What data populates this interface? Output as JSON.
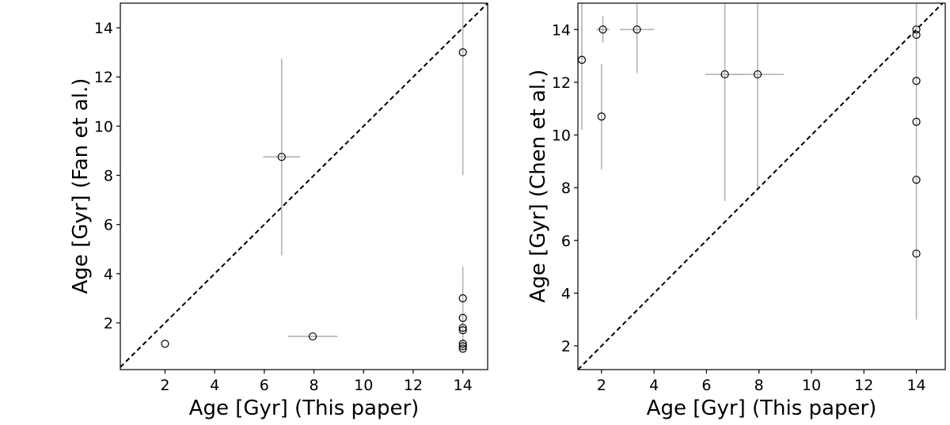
{
  "chart_data": [
    {
      "type": "scatter",
      "xlabel": "Age [Gyr] (This paper)",
      "ylabel": "Age [Gyr] (Fan et al.)",
      "xlim": [
        0.2,
        15
      ],
      "ylim": [
        0.1,
        15
      ],
      "xticks": [
        2,
        4,
        6,
        8,
        10,
        12,
        14
      ],
      "yticks": [
        2,
        4,
        6,
        8,
        10,
        12,
        14
      ],
      "reference_line": "y = x, dashed",
      "grid": false,
      "points": [
        {
          "x": 2.0,
          "y": 1.15
        },
        {
          "x": 6.7,
          "y": 8.75,
          "xerr": [
            0.75,
            0.75
          ],
          "yerr": [
            4.0,
            4.0
          ]
        },
        {
          "x": 7.95,
          "y": 1.45,
          "xerr": [
            1.0,
            1.0
          ]
        },
        {
          "x": 14.0,
          "y": 13.0,
          "yerr": [
            5.0,
            2.2
          ]
        },
        {
          "x": 14.0,
          "y": 3.0,
          "yerr": [
            2.1,
            1.3
          ]
        },
        {
          "x": 14.0,
          "y": 2.2
        },
        {
          "x": 14.0,
          "y": 1.8
        },
        {
          "x": 14.0,
          "y": 1.7
        },
        {
          "x": 14.0,
          "y": 1.15
        },
        {
          "x": 14.0,
          "y": 1.05
        },
        {
          "x": 14.0,
          "y": 0.95
        }
      ]
    },
    {
      "type": "scatter",
      "xlabel": "Age [Gyr] (This paper)",
      "ylabel": "Age [Gyr] (Chen et al.)",
      "xlim": [
        1.1,
        15.1
      ],
      "ylim": [
        1.1,
        15.0
      ],
      "xticks": [
        2,
        4,
        6,
        8,
        10,
        12,
        14
      ],
      "yticks": [
        2,
        4,
        6,
        8,
        10,
        12,
        14
      ],
      "reference_line": "y = x, dashed",
      "grid": false,
      "points": [
        {
          "x": 1.25,
          "y": 12.85,
          "yerr": [
            2.65,
            2.15
          ]
        },
        {
          "x": 2.0,
          "y": 10.7,
          "yerr": [
            2.0,
            2.0
          ]
        },
        {
          "x": 2.05,
          "y": 14.0,
          "xerr": [
            0.25,
            0.25
          ],
          "yerr": [
            0.5,
            0.5
          ]
        },
        {
          "x": 3.35,
          "y": 14.0,
          "xerr": [
            0.65,
            0.65
          ],
          "yerr": [
            1.65,
            1.0
          ]
        },
        {
          "x": 6.7,
          "y": 12.3,
          "xerr": [
            0.75,
            0.75
          ],
          "yerr": [
            4.8,
            2.7
          ]
        },
        {
          "x": 7.95,
          "y": 12.3,
          "xerr": [
            1.0,
            1.0
          ],
          "yerr": [
            4.3,
            2.7
          ]
        },
        {
          "x": 14.0,
          "y": 14.0
        },
        {
          "x": 14.0,
          "y": 13.8
        },
        {
          "x": 14.0,
          "y": 12.05
        },
        {
          "x": 14.0,
          "y": 10.5
        },
        {
          "x": 14.0,
          "y": 8.3
        },
        {
          "x": 14.0,
          "y": 5.5,
          "yerr": [
            2.5,
            9.5
          ]
        }
      ]
    }
  ]
}
